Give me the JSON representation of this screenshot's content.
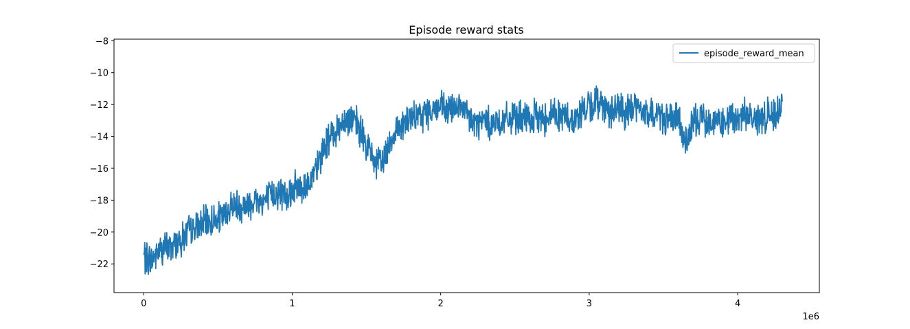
{
  "chart_data": {
    "type": "line",
    "title": "Episode reward stats",
    "xlabel": "",
    "ylabel": "",
    "x_offset_label": "1e6",
    "xlim": [
      -0.2,
      4.55
    ],
    "ylim": [
      -23.8,
      -7.9
    ],
    "xticks": [
      0,
      1,
      2,
      3,
      4
    ],
    "xtick_labels": [
      "0",
      "1",
      "2",
      "3",
      "4"
    ],
    "yticks": [
      -22,
      -20,
      -18,
      -16,
      -14,
      -12,
      -10,
      -8
    ],
    "ytick_labels": [
      "−22",
      "−20",
      "−18",
      "−16",
      "−14",
      "−12",
      "−10",
      "−8"
    ],
    "grid": false,
    "legend_position": "top-right",
    "series": [
      {
        "name": "episode_reward_mean",
        "color": "#1f77b4",
        "x": [
          0.0,
          0.05,
          0.1,
          0.15,
          0.2,
          0.25,
          0.3,
          0.35,
          0.4,
          0.45,
          0.5,
          0.55,
          0.6,
          0.65,
          0.7,
          0.75,
          0.8,
          0.85,
          0.9,
          0.95,
          1.0,
          1.05,
          1.1,
          1.15,
          1.2,
          1.25,
          1.3,
          1.35,
          1.4,
          1.45,
          1.5,
          1.55,
          1.6,
          1.65,
          1.7,
          1.75,
          1.8,
          1.85,
          1.9,
          1.95,
          2.0,
          2.05,
          2.1,
          2.15,
          2.2,
          2.25,
          2.3,
          2.35,
          2.4,
          2.45,
          2.5,
          2.55,
          2.6,
          2.65,
          2.7,
          2.75,
          2.8,
          2.85,
          2.9,
          2.95,
          3.0,
          3.05,
          3.1,
          3.15,
          3.2,
          3.25,
          3.3,
          3.35,
          3.4,
          3.45,
          3.5,
          3.55,
          3.6,
          3.65,
          3.7,
          3.75,
          3.8,
          3.85,
          3.9,
          3.95,
          4.0,
          4.05,
          4.1,
          4.15,
          4.2,
          4.25,
          4.3
        ],
        "values": [
          -21.5,
          -21.8,
          -21.2,
          -21.0,
          -20.8,
          -20.5,
          -20.0,
          -19.8,
          -19.5,
          -19.3,
          -19.2,
          -19.0,
          -18.2,
          -18.4,
          -18.3,
          -18.0,
          -18.1,
          -17.8,
          -17.5,
          -17.6,
          -17.3,
          -17.2,
          -17.0,
          -16.5,
          -15.0,
          -14.2,
          -13.5,
          -13.0,
          -12.8,
          -13.5,
          -14.5,
          -15.5,
          -15.8,
          -14.5,
          -13.5,
          -13.2,
          -13.0,
          -12.8,
          -12.5,
          -12.3,
          -12.2,
          -12.5,
          -12.0,
          -12.4,
          -13.0,
          -13.2,
          -13.0,
          -13.2,
          -13.1,
          -13.0,
          -12.8,
          -12.9,
          -13.0,
          -12.7,
          -12.9,
          -12.5,
          -12.6,
          -12.8,
          -13.0,
          -12.4,
          -12.2,
          -11.8,
          -12.0,
          -12.5,
          -12.3,
          -12.6,
          -12.0,
          -12.4,
          -12.7,
          -12.5,
          -12.8,
          -13.0,
          -12.9,
          -14.5,
          -13.2,
          -12.8,
          -12.9,
          -13.0,
          -13.2,
          -12.9,
          -13.0,
          -12.6,
          -12.8,
          -13.0,
          -12.7,
          -12.5,
          -12.0
        ],
        "noise_amplitude": 0.9
      }
    ]
  }
}
